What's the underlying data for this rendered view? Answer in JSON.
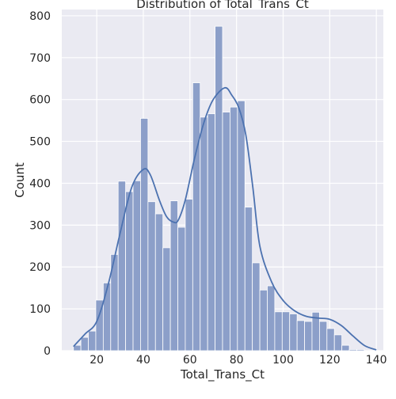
{
  "chart_data": {
    "type": "histogram",
    "title": "Distribution of Total_Trans_Ct",
    "xlabel": "Total_Trans_Ct",
    "ylabel": "Count",
    "xlim": [
      5,
      143
    ],
    "ylim": [
      0,
      815
    ],
    "xticks": [
      20,
      40,
      60,
      80,
      100,
      120,
      140
    ],
    "yticks": [
      0,
      100,
      200,
      300,
      400,
      500,
      600,
      700,
      800
    ],
    "grid": true,
    "bar_color": "#8c9fc9",
    "bar_edge_color": "#ffffff",
    "kde_color": "#4c72b0",
    "background_color": "#eaeaf2",
    "bins": {
      "start": 10,
      "width": 3.2,
      "counts": [
        13,
        32,
        47,
        121,
        162,
        230,
        405,
        380,
        406,
        555,
        356,
        327,
        246,
        358,
        295,
        362,
        640,
        558,
        566,
        775,
        570,
        582,
        597,
        343,
        210,
        145,
        155,
        93,
        93,
        88,
        72,
        70,
        92,
        70,
        53,
        38,
        13,
        3,
        3
      ]
    },
    "kde": {
      "x": [
        10,
        15,
        20,
        25,
        30,
        35,
        40,
        43,
        47,
        50,
        53,
        55,
        58,
        62,
        66,
        70,
        75,
        78,
        81,
        84,
        87,
        90,
        95,
        100,
        105,
        110,
        115,
        120,
        125,
        130,
        135,
        140
      ],
      "y": [
        10,
        40,
        70,
        160,
        280,
        390,
        433,
        420,
        358,
        320,
        307,
        312,
        360,
        460,
        545,
        600,
        628,
        610,
        580,
        515,
        390,
        250,
        165,
        120,
        95,
        82,
        78,
        75,
        60,
        35,
        12,
        2
      ]
    }
  }
}
